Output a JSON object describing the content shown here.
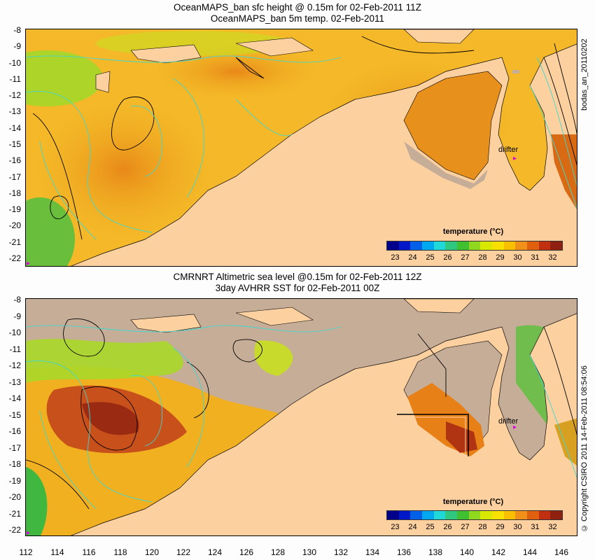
{
  "top_panel": {
    "title_line1": "OceanMAPS_ban sfc height @ 0.15m for 02-Feb-2011 11Z",
    "title_line2": "OceanMAPS_ban 5m temp. 02-Feb-2011",
    "side_label": "bodas_an_20110202",
    "drifter_label": "drifter",
    "legend_title": "temperature (°C)"
  },
  "bottom_panel": {
    "title_line1": "CMRNRT Altimetric sea level  @0.15m  for 02-Feb-2011 12Z",
    "title_line2": "3day AVHRR SST for 02-Feb-2011 00Z",
    "side_label": "© Copyright CSIRO 2011   14-Feb-2011 08:54:06",
    "drifter_label": "drifter",
    "legend_title": "temperature (°C)"
  },
  "y_ticks": [
    "-8",
    "-9",
    "-10",
    "-11",
    "-12",
    "-13",
    "-14",
    "-15",
    "-16",
    "-17",
    "-18",
    "-19",
    "-20",
    "-21",
    "-22"
  ],
  "x_ticks": [
    "112",
    "114",
    "116",
    "118",
    "120",
    "122",
    "124",
    "126",
    "128",
    "130",
    "132",
    "134",
    "136",
    "138",
    "140",
    "142",
    "144",
    "146"
  ],
  "legend_ticks": [
    "23",
    "24",
    "25",
    "26",
    "27",
    "28",
    "29",
    "30",
    "31",
    "32"
  ],
  "colors": {
    "land": "#fdd0a0",
    "missing_sea": "#c5ad98",
    "contour_cyan": "#40d8d0",
    "drifter": "#e000e0",
    "scale": [
      "#00008b",
      "#0018c8",
      "#0060e8",
      "#00a8f0",
      "#20d8d8",
      "#30c880",
      "#40c030",
      "#90d820",
      "#d8e800",
      "#f8e000",
      "#f8c000",
      "#f09018",
      "#e06010",
      "#c03010",
      "#902010"
    ]
  }
}
